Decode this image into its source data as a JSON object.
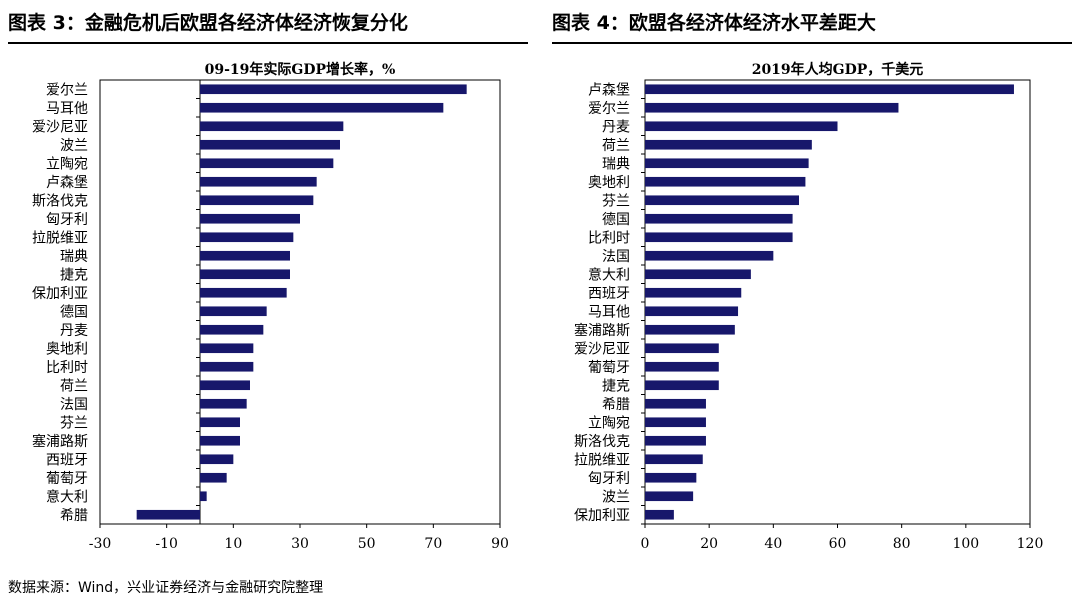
{
  "figures": [
    {
      "title": "图表 3：金融危机后欧盟各经济体经济恢复分化"
    },
    {
      "title": "图表 4：欧盟各经济体经济水平差距大"
    }
  ],
  "source": "数据来源：Wind，兴业证券经济与金融研究院整理",
  "chart_data": [
    {
      "type": "bar",
      "orientation": "horizontal",
      "title": "09-19年实际GDP增长率，%",
      "categories": [
        "爱尔兰",
        "马耳他",
        "爱沙尼亚",
        "波兰",
        "立陶宛",
        "卢森堡",
        "斯洛伐克",
        "匈牙利",
        "拉脱维亚",
        "瑞典",
        "捷克",
        "保加利亚",
        "德国",
        "丹麦",
        "奥地利",
        "比利时",
        "荷兰",
        "法国",
        "芬兰",
        "塞浦路斯",
        "西班牙",
        "葡萄牙",
        "意大利",
        "希腊"
      ],
      "values": [
        80,
        73,
        43,
        42,
        40,
        35,
        34,
        30,
        28,
        27,
        27,
        26,
        20,
        19,
        16,
        16,
        15,
        14,
        12,
        12,
        10,
        8,
        2,
        -19
      ],
      "xlim": [
        -30,
        90
      ],
      "xticks": [
        -30,
        -10,
        10,
        30,
        50,
        70,
        90
      ],
      "bar_color": "#17176b",
      "grid": false
    },
    {
      "type": "bar",
      "orientation": "horizontal",
      "title": "2019年人均GDP，千美元",
      "categories": [
        "卢森堡",
        "爱尔兰",
        "丹麦",
        "荷兰",
        "瑞典",
        "奥地利",
        "芬兰",
        "德国",
        "比利时",
        "法国",
        "意大利",
        "西班牙",
        "马耳他",
        "塞浦路斯",
        "爱沙尼亚",
        "葡萄牙",
        "捷克",
        "希腊",
        "立陶宛",
        "斯洛伐克",
        "拉脱维亚",
        "匈牙利",
        "波兰",
        "保加利亚"
      ],
      "values": [
        115,
        79,
        60,
        52,
        51,
        50,
        48,
        46,
        46,
        40,
        33,
        30,
        29,
        28,
        23,
        23,
        23,
        19,
        19,
        19,
        18,
        16,
        15,
        9
      ],
      "xlim": [
        0,
        120
      ],
      "xticks": [
        0,
        20,
        40,
        60,
        80,
        100,
        120
      ],
      "bar_color": "#17176b",
      "grid": false
    }
  ]
}
